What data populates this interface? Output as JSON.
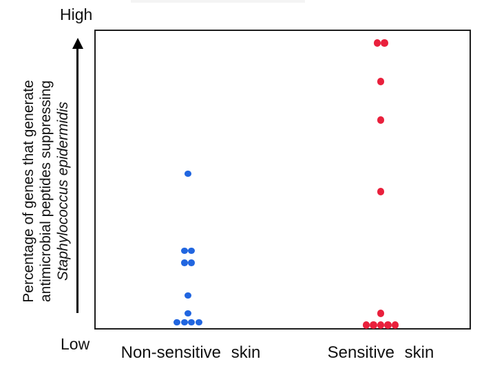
{
  "y_axis": {
    "high_label": "High",
    "low_label": "Low",
    "title_line1": "Percentage of genes that generate",
    "title_line2": "antimicrobial peptides suppressing",
    "title_line3": "Staphylococcus epidermidis"
  },
  "x_axis": {
    "categories": [
      "Non-sensitive skin",
      "Sensitive skin"
    ]
  },
  "colors": {
    "non_sensitive_dot": "#2166e0",
    "sensitive_dot": "#e9203c",
    "plot_border": "#1c1c1c",
    "axis_arrow": "#000000"
  },
  "chart_data": {
    "type": "scatter",
    "title": "",
    "xlabel": "",
    "ylabel": "Percentage of genes that generate antimicrobial peptides suppressing Staphylococcus epidermidis",
    "y_scale": "qualitative, arrow axis from Low (0) to High (100), no numeric ticks or gridlines",
    "ylim": [
      0,
      100
    ],
    "legend": "none",
    "categories": [
      "Non-sensitive skin",
      "Sensitive skin"
    ],
    "groups": [
      {
        "name": "Non-sensitive skin",
        "color": "#2166e0",
        "x_frac": 0.247,
        "dot_diameter": 9.5,
        "points": [
          {
            "level": 52,
            "dx": 0
          },
          {
            "level": 26,
            "dx": -5
          },
          {
            "level": 26,
            "dx": 5
          },
          {
            "level": 22,
            "dx": -5
          },
          {
            "level": 22,
            "dx": 5
          },
          {
            "level": 11,
            "dx": 0
          },
          {
            "level": 5,
            "dx": 0
          },
          {
            "level": 2,
            "dx": -16
          },
          {
            "level": 2,
            "dx": -5
          },
          {
            "level": 2,
            "dx": 5
          },
          {
            "level": 2,
            "dx": 16
          }
        ]
      },
      {
        "name": "Sensitive skin",
        "color": "#e9203c",
        "x_frac": 0.762,
        "dot_diameter": 10.5,
        "points": [
          {
            "level": 96,
            "dx": -5
          },
          {
            "level": 96,
            "dx": 5.5
          },
          {
            "level": 83,
            "dx": 0
          },
          {
            "level": 70,
            "dx": 0
          },
          {
            "level": 46,
            "dx": 0
          },
          {
            "level": 5,
            "dx": 0
          },
          {
            "level": 1,
            "dx": -21
          },
          {
            "level": 1,
            "dx": -10.5
          },
          {
            "level": 1,
            "dx": 0
          },
          {
            "level": 1,
            "dx": 10.5
          },
          {
            "level": 1,
            "dx": 21
          }
        ]
      }
    ]
  }
}
